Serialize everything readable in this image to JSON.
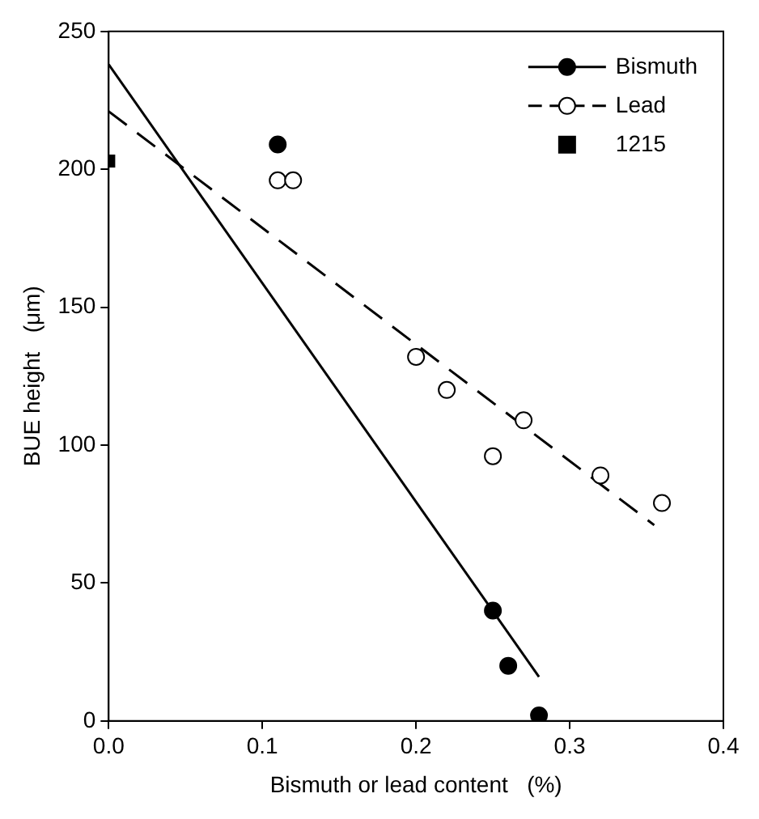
{
  "chart_data": {
    "type": "scatter",
    "xlabel": "Bismuth or lead content   (%)",
    "ylabel": "BUE height   (μm)",
    "xlim": [
      0,
      0.4
    ],
    "xticks": [
      {
        "value": 0,
        "label": "0.0"
      },
      0.1,
      0.2,
      0.3,
      0.4
    ],
    "ylim": [
      0,
      250
    ],
    "yticks": [
      0,
      50,
      100,
      150,
      200,
      250
    ],
    "grid": false,
    "legend": "top right",
    "series": [
      {
        "name": "Bismuth",
        "color": "#000000",
        "marker": "circle",
        "x": [
          0.11,
          0.25,
          0.26,
          0.28
        ],
        "values": [
          209,
          40,
          20,
          2
        ]
      },
      {
        "type": "line",
        "color": "#000000",
        "line_style": "solid",
        "marker": "none",
        "x": [
          0,
          0.28
        ],
        "values": [
          238,
          16
        ]
      },
      {
        "name": "Lead",
        "color": "#ffffff",
        "marker": "circle",
        "x": [
          0.11,
          0.12,
          0.2,
          0.22,
          0.25,
          0.27,
          0.32,
          0.36
        ],
        "values": [
          196,
          196,
          132,
          120,
          96,
          109,
          89,
          79
        ]
      },
      {
        "type": "line",
        "color": "#000000",
        "line_style": "dashed",
        "marker": "none",
        "x": [
          0,
          0.355
        ],
        "values": [
          221,
          71
        ]
      },
      {
        "name": "1215",
        "color": "#000000",
        "marker": "square",
        "x": [
          0
        ],
        "values": [
          203
        ]
      }
    ]
  }
}
